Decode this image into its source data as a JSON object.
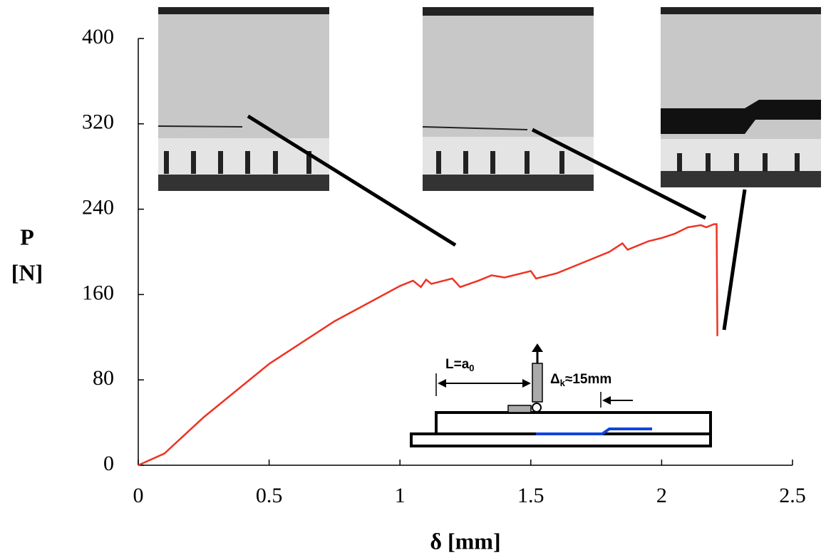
{
  "chart_data": {
    "type": "line",
    "x_label": "δ [mm]",
    "y_label": [
      "P",
      "[N]"
    ],
    "xlim": [
      0,
      2.5
    ],
    "xticks": [
      0,
      0.5,
      1,
      1.5,
      2,
      2.5
    ],
    "ylim": [
      0,
      400
    ],
    "yticks": [
      0,
      80,
      160,
      240,
      320,
      400
    ],
    "color": "#ee3322",
    "x": [
      0,
      0.1,
      0.25,
      0.5,
      0.75,
      1.0,
      1.05,
      1.08,
      1.1,
      1.12,
      1.2,
      1.23,
      1.3,
      1.35,
      1.4,
      1.5,
      1.52,
      1.6,
      1.7,
      1.8,
      1.85,
      1.87,
      1.95,
      2.0,
      2.05,
      2.1,
      2.15,
      2.17,
      2.2,
      2.21,
      2.213
    ],
    "values": [
      0,
      11,
      45,
      95,
      135,
      168,
      173,
      167,
      174,
      170,
      175,
      167,
      173,
      178,
      176,
      182,
      175,
      180,
      190,
      200,
      208,
      202,
      210,
      213,
      217,
      223,
      225,
      223,
      226,
      226,
      121
    ],
    "annotations": [
      {
        "text": "L=a",
        "sub": "0"
      },
      {
        "pre": "Δ",
        "sub": "k",
        "post": "≈15mm"
      }
    ]
  }
}
